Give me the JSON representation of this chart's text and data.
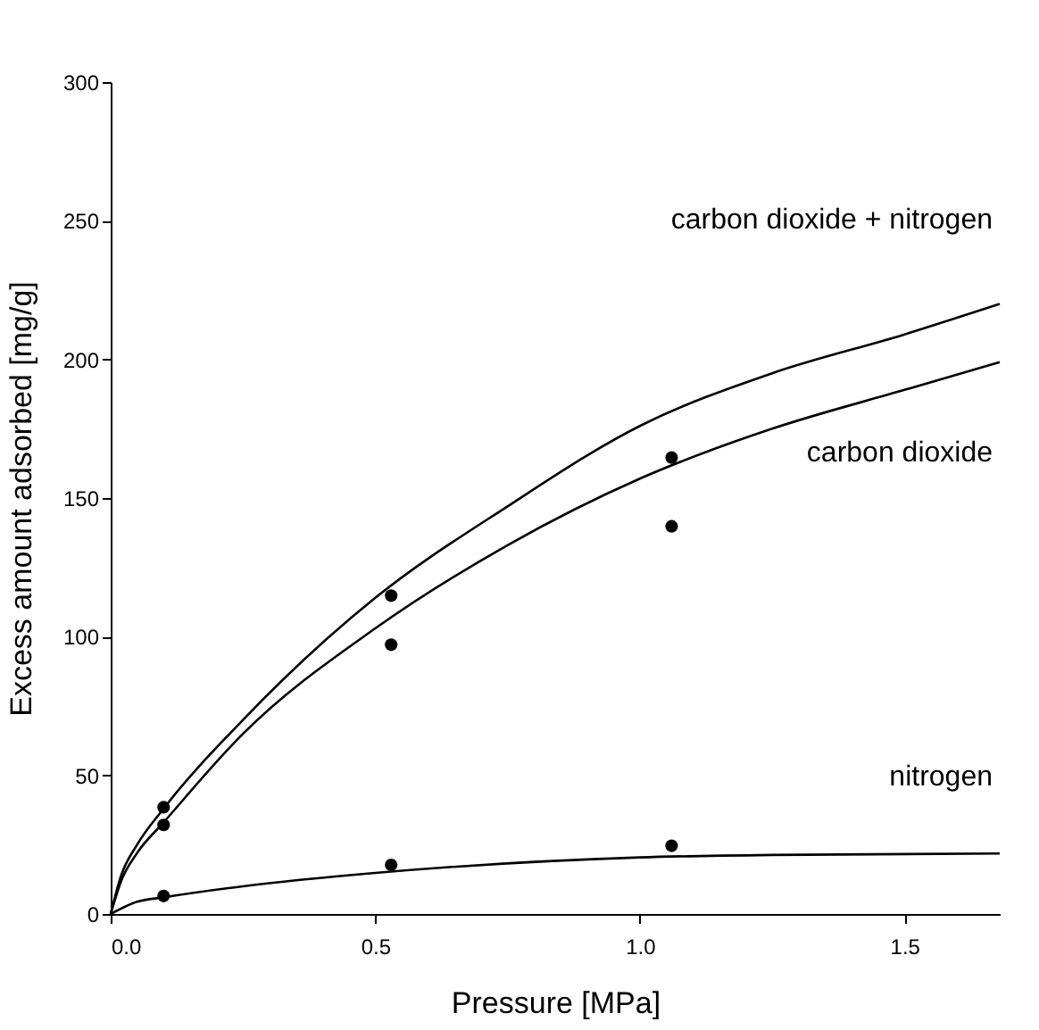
{
  "chart_data": {
    "type": "line",
    "xlabel": "Pressure [MPa]",
    "ylabel": "Excess amount adsorbed [mg/g]",
    "xlim": [
      0,
      1.68
    ],
    "xticks": [
      {
        "value": 0,
        "label": "0.0"
      },
      {
        "value": 0.5,
        "label": "0.5"
      },
      {
        "value": 1,
        "label": "1.0"
      },
      {
        "value": 1.5,
        "label": "1.5"
      }
    ],
    "ylim": [
      0,
      300
    ],
    "yticks": [
      0,
      50,
      100,
      150,
      200,
      250,
      300
    ],
    "series": [
      {
        "color": "#000000",
        "x": [
          0,
          0.02,
          0.05,
          0.1,
          0.25,
          0.5,
          0.75,
          1.0,
          1.25,
          1.5,
          1.68
        ],
        "values": [
          0,
          14,
          25,
          38,
          70,
          114,
          147,
          176,
          195,
          209,
          220
        ]
      },
      {
        "color": "#000000",
        "x": [
          0,
          0.02,
          0.05,
          0.1,
          0.25,
          0.5,
          0.75,
          1.0,
          1.25,
          1.5,
          1.68
        ],
        "values": [
          0,
          12,
          22,
          33,
          65,
          103,
          133,
          157,
          175,
          189,
          199
        ]
      },
      {
        "color": "#000000",
        "x": [
          0,
          0.05,
          0.1,
          0.25,
          0.5,
          1.0,
          1.25,
          1.68
        ],
        "values": [
          0,
          4.4,
          6,
          10,
          14.8,
          20.4,
          21.3,
          21.8
        ]
      },
      {
        "type": "scatter",
        "color": "#000000",
        "marker": "circle",
        "x": [
          0.1,
          0.53,
          1.06
        ],
        "values": [
          38.5,
          114.8,
          164.6
        ]
      },
      {
        "type": "scatter",
        "color": "#000000",
        "marker": "circle",
        "x": [
          0.1,
          0.53,
          1.06
        ],
        "values": [
          32.1,
          97.1,
          139.8
        ]
      },
      {
        "type": "scatter",
        "color": "#000000",
        "marker": "circle",
        "x": [
          0.1,
          0.53,
          1.06
        ],
        "values": [
          6.5,
          17.7,
          24.6
        ]
      }
    ],
    "annotations": [
      "carbon dioxide + nitrogen",
      "carbon dioxide",
      "nitrogen"
    ]
  }
}
